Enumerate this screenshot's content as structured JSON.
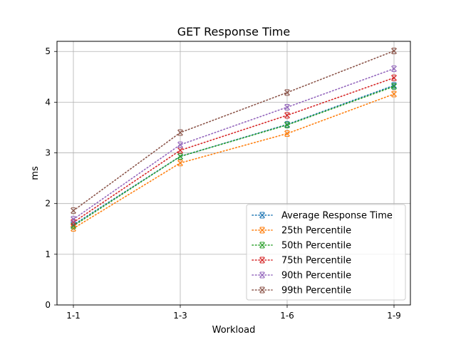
{
  "chart_data": {
    "type": "line",
    "title": "GET Response Time",
    "xlabel": "Workload",
    "ylabel": "ms",
    "categories": [
      "1-1",
      "1-3",
      "1-6",
      "1-9"
    ],
    "ylim": [
      0,
      5.2
    ],
    "yticks": [
      "0",
      "1",
      "2",
      "3",
      "4",
      "5"
    ],
    "grid": true,
    "legend_position": "lower-right",
    "series": [
      {
        "name": "Average Response Time",
        "color": "#1f77b4",
        "values": [
          1.58,
          2.93,
          3.56,
          4.33
        ]
      },
      {
        "name": "25th Percentile",
        "color": "#ff7f0e",
        "values": [
          1.51,
          2.8,
          3.38,
          4.16
        ]
      },
      {
        "name": "50th Percentile",
        "color": "#2ca02c",
        "values": [
          1.56,
          2.93,
          3.55,
          4.31
        ]
      },
      {
        "name": "75th Percentile",
        "color": "#d62728",
        "values": [
          1.63,
          3.05,
          3.74,
          4.48
        ]
      },
      {
        "name": "90th Percentile",
        "color": "#9467bd",
        "values": [
          1.69,
          3.16,
          3.9,
          4.66
        ]
      },
      {
        "name": "99th Percentile",
        "color": "#8c564b",
        "values": [
          1.86,
          3.4,
          4.19,
          5.01
        ]
      }
    ]
  }
}
